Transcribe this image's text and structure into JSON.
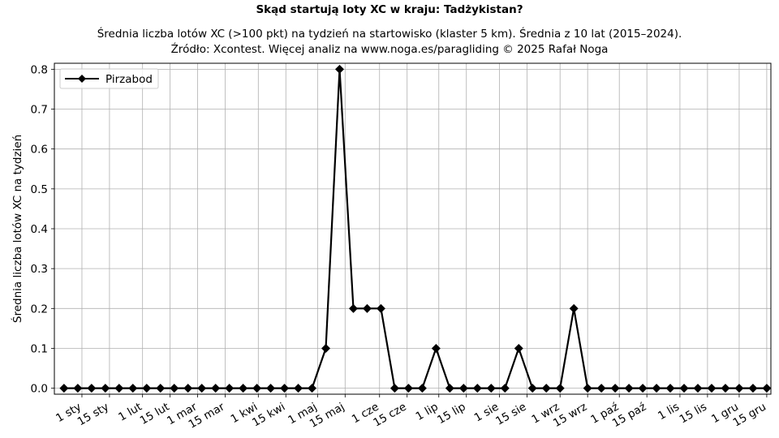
{
  "chart_data": {
    "type": "line",
    "title": "Skąd startują loty XC w kraju: Tadżykistan?",
    "subtitle_lines": [
      "Średnia liczba lotów XC (>100 pkt) na tydzień na startowisko (klaster 5 km). Średnia z 10 lat (2015–2024).",
      "Źródło: Xcontest. Więcej analiz na www.noga.es/paragliding © 2025 Rafał Noga"
    ],
    "xlabel": "",
    "ylabel": "Średnia liczba lotów XC na tydzień",
    "ylim": [
      -0.015,
      0.815
    ],
    "xlim": [
      0.3,
      52.3
    ],
    "yticks": [
      0.0,
      0.1,
      0.2,
      0.3,
      0.4,
      0.5,
      0.6,
      0.7,
      0.8
    ],
    "ytick_labels": [
      "0.0",
      "0.1",
      "0.2",
      "0.3",
      "0.4",
      "0.5",
      "0.6",
      "0.7",
      "0.8"
    ],
    "x_ticks": [
      {
        "week": 2.3,
        "label": "1 sty"
      },
      {
        "week": 4.3,
        "label": "15 sty"
      },
      {
        "week": 6.7,
        "label": "1 lut"
      },
      {
        "week": 8.7,
        "label": "15 lut"
      },
      {
        "week": 10.7,
        "label": "1 mar"
      },
      {
        "week": 12.7,
        "label": "15 mar"
      },
      {
        "week": 15.1,
        "label": "1 kwi"
      },
      {
        "week": 17.1,
        "label": "15 kwi"
      },
      {
        "week": 19.4,
        "label": "1 maj"
      },
      {
        "week": 21.4,
        "label": "15 maj"
      },
      {
        "week": 23.9,
        "label": "1 cze"
      },
      {
        "week": 25.9,
        "label": "15 cze"
      },
      {
        "week": 28.2,
        "label": "1 lip"
      },
      {
        "week": 30.2,
        "label": "15 lip"
      },
      {
        "week": 32.6,
        "label": "1 sie"
      },
      {
        "week": 34.6,
        "label": "15 sie"
      },
      {
        "week": 37.0,
        "label": "1 wrz"
      },
      {
        "week": 39.0,
        "label": "15 wrz"
      },
      {
        "week": 41.3,
        "label": "1 paź"
      },
      {
        "week": 43.3,
        "label": "15 paź"
      },
      {
        "week": 45.7,
        "label": "1 lis"
      },
      {
        "week": 47.7,
        "label": "15 lis"
      },
      {
        "week": 50.0,
        "label": "1 gru"
      },
      {
        "week": 52.0,
        "label": "15 gru"
      }
    ],
    "grid": true,
    "legend_position": "top-left",
    "series": [
      {
        "name": "Pirzabod",
        "color": "#000000",
        "marker": "diamond",
        "x": [
          1,
          2,
          3,
          4,
          5,
          6,
          7,
          8,
          9,
          10,
          11,
          12,
          13,
          14,
          15,
          16,
          17,
          18,
          19,
          20,
          21,
          22,
          23,
          24,
          25,
          26,
          27,
          28,
          29,
          30,
          31,
          32,
          33,
          34,
          35,
          36,
          37,
          38,
          39,
          40,
          41,
          42,
          43,
          44,
          45,
          46,
          47,
          48,
          49,
          50,
          51,
          52
        ],
        "values": [
          0,
          0,
          0,
          0,
          0,
          0,
          0,
          0,
          0,
          0,
          0,
          0,
          0,
          0,
          0,
          0,
          0,
          0,
          0,
          0.1,
          0.8,
          0.2,
          0.2,
          0.2,
          0,
          0,
          0,
          0.1,
          0,
          0,
          0,
          0,
          0,
          0.1,
          0,
          0,
          0,
          0.2,
          0,
          0,
          0,
          0,
          0,
          0,
          0,
          0,
          0,
          0,
          0,
          0,
          0,
          0
        ]
      }
    ]
  }
}
